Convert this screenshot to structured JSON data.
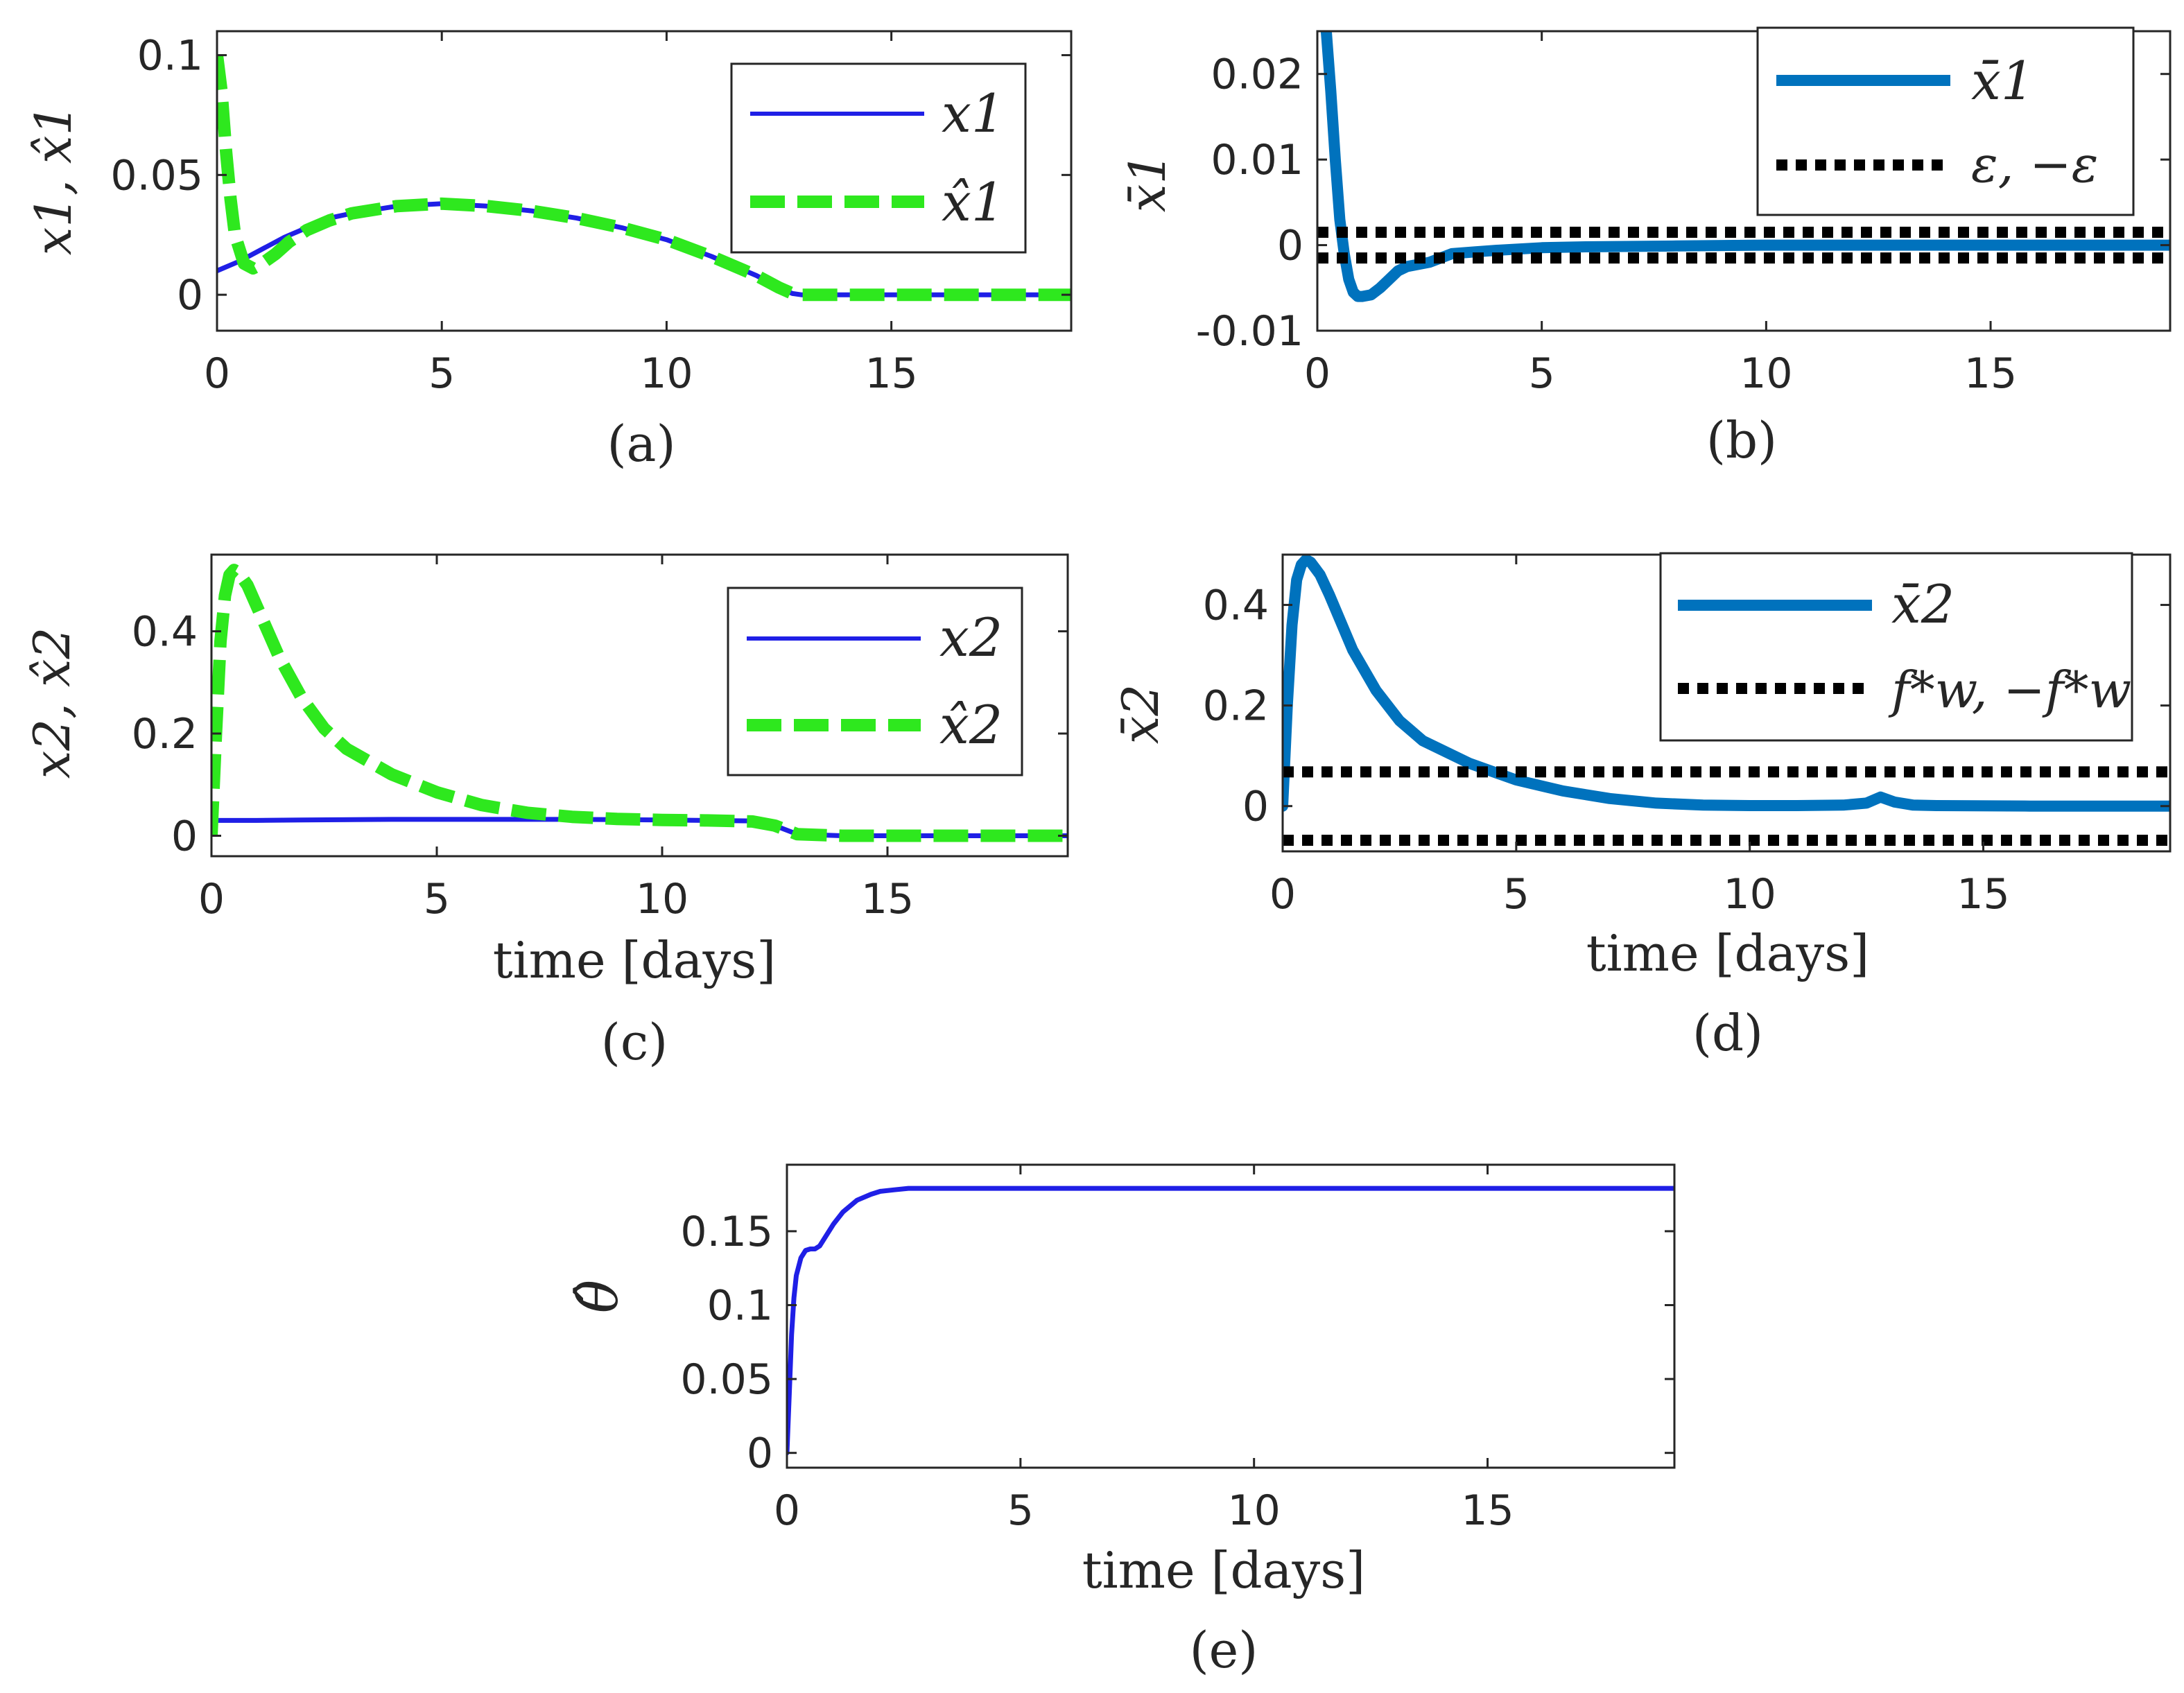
{
  "chart_data": [
    {
      "type": "line",
      "caption": "(a)",
      "xlabel": "",
      "ylabel": "x1, x̂1",
      "xlim": [
        0,
        19
      ],
      "ylim": [
        -0.015,
        0.11
      ],
      "xticks": [
        0,
        5,
        10,
        15
      ],
      "yticks": [
        0,
        0.05,
        0.1
      ],
      "xtick_labels": [
        "0",
        "5",
        "10",
        "15"
      ],
      "ytick_labels": [
        "0",
        "0.05",
        "0.1"
      ],
      "legend": "top-right",
      "grid": false,
      "series": [
        {
          "name": "x1",
          "color": "#1f1fe6",
          "style": "solid",
          "x": [
            0,
            0.5,
            1,
            1.5,
            2,
            2.5,
            3,
            4,
            5,
            6,
            7,
            8,
            9,
            10,
            11,
            12,
            12.5,
            12.8,
            13,
            14,
            15,
            16,
            17,
            18,
            19
          ],
          "y": [
            0.01,
            0.014,
            0.019,
            0.024,
            0.028,
            0.032,
            0.034,
            0.037,
            0.038,
            0.037,
            0.035,
            0.032,
            0.028,
            0.023,
            0.016,
            0.008,
            0.003,
            0.0005,
            0,
            0,
            0,
            0,
            0,
            0,
            0
          ]
        },
        {
          "name": "x̂1",
          "color": "#2ee81e",
          "style": "dashed",
          "x": [
            0,
            0.1,
            0.2,
            0.3,
            0.4,
            0.6,
            0.8,
            1,
            1.3,
            1.6,
            2,
            2.5,
            3,
            4,
            5,
            6,
            7,
            8,
            9,
            10,
            11,
            12,
            12.5,
            12.8,
            13,
            14,
            15,
            16,
            17,
            18,
            19
          ],
          "y": [
            0.1,
            0.085,
            0.06,
            0.04,
            0.025,
            0.013,
            0.011,
            0.013,
            0.017,
            0.022,
            0.027,
            0.031,
            0.034,
            0.037,
            0.038,
            0.037,
            0.035,
            0.032,
            0.028,
            0.023,
            0.016,
            0.008,
            0.003,
            0.0005,
            0,
            0,
            0,
            0,
            0,
            0,
            0
          ]
        }
      ]
    },
    {
      "type": "line",
      "caption": "(b)",
      "xlabel": "",
      "ylabel": "x̄1",
      "xlim": [
        0,
        19
      ],
      "ylim": [
        -0.01,
        0.025
      ],
      "xticks": [
        0,
        5,
        10,
        15
      ],
      "yticks": [
        -0.01,
        0,
        0.01,
        0.02
      ],
      "xtick_labels": [
        "0",
        "5",
        "10",
        "15"
      ],
      "ytick_labels": [
        "-0.01",
        "0",
        "0.01",
        "0.02"
      ],
      "legend": "top-right",
      "grid": false,
      "series": [
        {
          "name": "x̄1",
          "color": "#0072bd",
          "style": "solid",
          "x": [
            0.2,
            0.3,
            0.4,
            0.5,
            0.6,
            0.7,
            0.8,
            0.9,
            1,
            1.2,
            1.4,
            1.6,
            1.8,
            2,
            2.5,
            3,
            3.5,
            4,
            5,
            6,
            8,
            10,
            12,
            14,
            16,
            19
          ],
          "y": [
            0.025,
            0.018,
            0.01,
            0.003,
            -0.001,
            -0.004,
            -0.0055,
            -0.006,
            -0.006,
            -0.0058,
            -0.005,
            -0.004,
            -0.003,
            -0.0025,
            -0.002,
            -0.001,
            -0.0008,
            -0.0006,
            -0.0003,
            -0.0002,
            -0.0001,
            0,
            0,
            0,
            0,
            0
          ]
        },
        {
          "name": "ε, −ε",
          "color": "#000000",
          "style": "dotted",
          "levels": [
            0.0015,
            -0.0015
          ],
          "x": [
            0,
            19
          ]
        }
      ]
    },
    {
      "type": "line",
      "caption": "(c)",
      "xlabel": "time [days]",
      "ylabel": "x2, x̂2",
      "xlim": [
        0,
        19
      ],
      "ylim": [
        -0.04,
        0.55
      ],
      "xticks": [
        0,
        5,
        10,
        15
      ],
      "yticks": [
        0,
        0.2,
        0.4
      ],
      "xtick_labels": [
        "0",
        "5",
        "10",
        "15"
      ],
      "ytick_labels": [
        "0",
        "0.2",
        "0.4"
      ],
      "legend": "top-right",
      "grid": false,
      "series": [
        {
          "name": "x2",
          "color": "#1f1fe6",
          "style": "solid",
          "x": [
            0,
            1,
            2,
            4,
            6,
            8,
            10,
            12,
            12.5,
            13,
            14,
            16,
            19
          ],
          "y": [
            0.03,
            0.03,
            0.031,
            0.032,
            0.032,
            0.032,
            0.031,
            0.029,
            0.02,
            0.003,
            0,
            0,
            0
          ]
        },
        {
          "name": "x̂2",
          "color": "#2ee81e",
          "style": "dashed",
          "x": [
            0,
            0.1,
            0.2,
            0.3,
            0.4,
            0.5,
            0.6,
            0.8,
            1,
            1.5,
            2,
            2.5,
            3,
            4,
            5,
            6,
            7,
            8,
            9,
            10,
            11,
            12,
            12.5,
            13,
            14,
            16,
            19
          ],
          "y": [
            0,
            0.2,
            0.38,
            0.47,
            0.51,
            0.52,
            0.515,
            0.49,
            0.45,
            0.35,
            0.27,
            0.21,
            0.17,
            0.12,
            0.085,
            0.06,
            0.045,
            0.037,
            0.033,
            0.031,
            0.03,
            0.028,
            0.02,
            0.003,
            0,
            0,
            0
          ]
        }
      ]
    },
    {
      "type": "line",
      "caption": "(d)",
      "xlabel": "time [days]",
      "ylabel": "x̄2",
      "xlim": [
        0,
        19
      ],
      "ylim": [
        -0.09,
        0.5
      ],
      "xticks": [
        0,
        5,
        10,
        15
      ],
      "yticks": [
        0,
        0.2,
        0.4
      ],
      "xtick_labels": [
        "0",
        "5",
        "10",
        "15"
      ],
      "ytick_labels": [
        "0",
        "0.2",
        "0.4"
      ],
      "legend": "top-right",
      "grid": false,
      "series": [
        {
          "name": "x̄2",
          "color": "#0072bd",
          "style": "solid",
          "x": [
            0,
            0.1,
            0.2,
            0.3,
            0.4,
            0.5,
            0.6,
            0.8,
            1,
            1.5,
            2,
            2.5,
            3,
            4,
            5,
            6,
            7,
            8,
            9,
            10,
            11,
            12,
            12.5,
            12.8,
            13.1,
            13.5,
            14,
            16,
            19
          ],
          "y": [
            0,
            0.2,
            0.36,
            0.45,
            0.48,
            0.49,
            0.485,
            0.46,
            0.42,
            0.31,
            0.23,
            0.17,
            0.13,
            0.085,
            0.052,
            0.03,
            0.015,
            0.006,
            0.002,
            0.001,
            0.001,
            0.002,
            0.006,
            0.018,
            0.008,
            0.002,
            0.001,
            0,
            0
          ]
        },
        {
          "name": "f*w, −f*w",
          "color": "#000000",
          "style": "dotted",
          "levels": [
            0.068,
            -0.068
          ],
          "x": [
            0,
            19
          ]
        }
      ]
    },
    {
      "type": "line",
      "caption": "(e)",
      "xlabel": "time [days]",
      "ylabel": "θ̂",
      "xlim": [
        0,
        19
      ],
      "ylim": [
        -0.01,
        0.195
      ],
      "xticks": [
        0,
        5,
        10,
        15
      ],
      "yticks": [
        0,
        0.05,
        0.1,
        0.15
      ],
      "xtick_labels": [
        "0",
        "5",
        "10",
        "15"
      ],
      "ytick_labels": [
        "0",
        "0.05",
        "0.1",
        "0.15"
      ],
      "legend": "none",
      "grid": false,
      "series": [
        {
          "name": "",
          "color": "#1f1fe6",
          "style": "solid",
          "x": [
            0,
            0.05,
            0.1,
            0.15,
            0.2,
            0.3,
            0.4,
            0.5,
            0.6,
            0.7,
            0.8,
            1,
            1.2,
            1.5,
            1.8,
            2,
            2.3,
            2.6,
            3,
            5,
            10,
            15,
            19
          ],
          "y": [
            0,
            0.04,
            0.08,
            0.105,
            0.12,
            0.132,
            0.137,
            0.138,
            0.138,
            0.14,
            0.145,
            0.155,
            0.163,
            0.171,
            0.175,
            0.177,
            0.178,
            0.179,
            0.179,
            0.179,
            0.179,
            0.179,
            0.179
          ]
        }
      ]
    }
  ]
}
